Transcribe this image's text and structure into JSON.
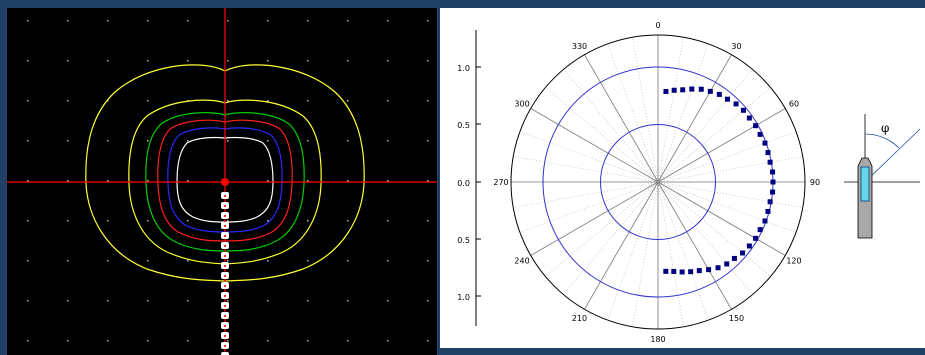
{
  "colors": {
    "background": "#1f3f64",
    "dose_background": "#000000",
    "crosshair": "#ff0000",
    "isodose": [
      "#ffff33",
      "#00cc00",
      "#ff0000",
      "#2222ff",
      "#ffffff"
    ],
    "polar_circle": "#3333cc",
    "polar_points": "#000080",
    "catheter_tip": "#66d9e8"
  },
  "dose_view": {
    "source_marker": "red dot at crosshair center",
    "catheter": "dashed white/red source train",
    "isodose_count": 5
  },
  "polar_plot": {
    "angle_labels": [
      "0",
      "30",
      "60",
      "90",
      "120",
      "150",
      "180",
      "210",
      "240",
      "270",
      "300",
      "330"
    ],
    "radial_axis_labels": [
      "1.0",
      "0.5",
      "0.0",
      "0.5",
      "1.0"
    ]
  },
  "diagram": {
    "angle_symbol": "φ"
  },
  "chart_data": {
    "type": "scatter",
    "coordinate_system": "polar",
    "title": "",
    "radial_ticks": [
      0.5,
      1.0
    ],
    "rlim": [
      0,
      1.1
    ],
    "angle_ticks": [
      0,
      30,
      60,
      90,
      120,
      150,
      180,
      210,
      240,
      270,
      300,
      330
    ],
    "grid": true,
    "angles_deg": [
      5,
      10,
      15,
      20,
      25,
      30,
      35,
      40,
      45,
      50,
      55,
      60,
      65,
      70,
      75,
      80,
      85,
      90,
      95,
      100,
      105,
      110,
      115,
      120,
      125,
      130,
      135,
      140,
      145,
      150,
      155,
      160,
      165,
      170,
      175
    ],
    "values": [
      0.79,
      0.81,
      0.83,
      0.86,
      0.89,
      0.91,
      0.93,
      0.94,
      0.96,
      0.97,
      0.97,
      0.98,
      0.98,
      0.99,
      0.99,
      0.99,
      1.0,
      1.0,
      1.0,
      0.99,
      0.99,
      0.99,
      0.98,
      0.98,
      0.97,
      0.96,
      0.94,
      0.93,
      0.91,
      0.88,
      0.85,
      0.83,
      0.81,
      0.79,
      0.78
    ]
  }
}
